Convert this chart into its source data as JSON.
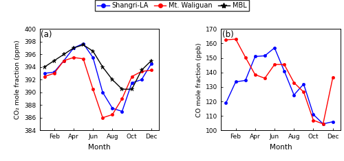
{
  "months": [
    1,
    2,
    3,
    4,
    5,
    6,
    7,
    8,
    9,
    10,
    11,
    12
  ],
  "xtick_labels": [
    "Feb",
    "Apr",
    "Jun",
    "Aug",
    "Oct",
    "Dec"
  ],
  "xtick_positions": [
    2,
    4,
    6,
    8,
    10,
    12
  ],
  "co2_shangri": [
    393.0,
    393.2,
    395.0,
    397.0,
    397.7,
    395.5,
    390.0,
    387.5,
    387.0,
    391.5,
    392.0,
    394.5
  ],
  "co2_waliguan": [
    392.5,
    393.0,
    395.0,
    395.5,
    395.3,
    390.5,
    386.0,
    386.5,
    389.0,
    392.5,
    393.3,
    393.5
  ],
  "co2_mbl": [
    394.0,
    395.0,
    396.0,
    397.0,
    397.5,
    396.5,
    394.0,
    392.0,
    390.5,
    390.5,
    393.5,
    395.0
  ],
  "co_shangri": [
    119.0,
    133.5,
    134.5,
    151.0,
    151.5,
    157.0,
    141.0,
    124.5,
    132.0,
    111.0,
    104.5,
    106.0
  ],
  "co_waliguan": [
    162.5,
    163.0,
    150.5,
    138.5,
    136.0,
    145.5,
    145.5,
    133.0,
    126.5,
    107.0,
    104.5,
    136.5
  ],
  "co2_ylim": [
    384,
    400
  ],
  "co2_yticks": [
    384,
    386,
    388,
    390,
    392,
    394,
    396,
    398,
    400
  ],
  "co_ylim": [
    100,
    170
  ],
  "co_yticks": [
    100,
    110,
    120,
    130,
    140,
    150,
    160,
    170
  ],
  "color_shangri": "#0000ff",
  "color_waliguan": "#ff0000",
  "color_mbl": "#000000",
  "label_shangri": "Shangri-LA",
  "label_waliguan": "Mt. Waliguan",
  "label_mbl": "MBL",
  "xlabel": "Month",
  "ylabel_co2": "CO₂ mole fraction (ppm)",
  "ylabel_co": "CO mole fraction (ppb)",
  "panel_a": "(a)",
  "panel_b": "(b)",
  "fig_width": 5.0,
  "fig_height": 2.35,
  "dpi": 100
}
